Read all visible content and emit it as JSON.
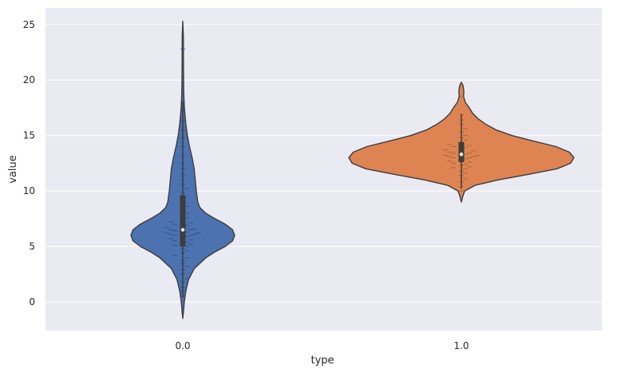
{
  "chart_data": {
    "type": "violin",
    "xlabel": "type",
    "ylabel": "value",
    "categories": [
      "0.0",
      "1.0"
    ],
    "yticks": [
      0,
      5,
      10,
      15,
      20,
      25
    ],
    "ylim": [
      -2.6,
      26.5
    ],
    "grid": true,
    "background": "#eaeaf2",
    "gridline_color": "#ffffff",
    "edge_color": "#3d3d3d",
    "violins": [
      {
        "category": "0.0",
        "color": "#4c72b0",
        "swarm_color": "#2b4a7c",
        "min": -1.5,
        "max": 25.3,
        "q1": 5.0,
        "median": 6.5,
        "q3": 9.6,
        "whisker_low": 0.4,
        "whisker_high": 18.0,
        "density": [
          [
            -1.5,
            0.0
          ],
          [
            -1.0,
            0.01
          ],
          [
            0.0,
            0.03
          ],
          [
            1.0,
            0.06
          ],
          [
            2.0,
            0.11
          ],
          [
            3.0,
            0.22
          ],
          [
            4.0,
            0.45
          ],
          [
            4.5,
            0.62
          ],
          [
            5.0,
            0.82
          ],
          [
            5.5,
            0.96
          ],
          [
            6.0,
            1.0
          ],
          [
            6.5,
            0.96
          ],
          [
            7.0,
            0.82
          ],
          [
            7.5,
            0.62
          ],
          [
            8.0,
            0.44
          ],
          [
            8.5,
            0.33
          ],
          [
            9.0,
            0.29
          ],
          [
            10.0,
            0.26
          ],
          [
            11.0,
            0.24
          ],
          [
            12.0,
            0.22
          ],
          [
            13.0,
            0.18
          ],
          [
            14.0,
            0.13
          ],
          [
            15.0,
            0.09
          ],
          [
            16.0,
            0.06
          ],
          [
            17.0,
            0.04
          ],
          [
            18.0,
            0.025
          ],
          [
            19.0,
            0.018
          ],
          [
            20.0,
            0.015
          ],
          [
            21.0,
            0.014
          ],
          [
            22.0,
            0.013
          ],
          [
            23.0,
            0.013
          ],
          [
            24.0,
            0.01
          ],
          [
            25.3,
            0.0
          ]
        ],
        "points": [
          0.5,
          1.0,
          1.3,
          1.8,
          2.1,
          2.5,
          2.9,
          3.2,
          3.5,
          3.8,
          4.0,
          4.2,
          4.4,
          4.6,
          4.8,
          5.0,
          5.1,
          5.2,
          5.3,
          5.4,
          5.5,
          5.6,
          5.7,
          5.8,
          5.9,
          6.0,
          6.0,
          6.1,
          6.1,
          6.2,
          6.2,
          6.3,
          6.3,
          6.4,
          6.5,
          6.5,
          6.6,
          6.7,
          6.8,
          6.9,
          7.0,
          7.1,
          7.2,
          7.4,
          7.6,
          7.8,
          8.0,
          8.3,
          8.6,
          9.0,
          9.4,
          9.8,
          10.2,
          10.6,
          11.0,
          11.5,
          12.0,
          12.5,
          13.2,
          14.0,
          14.8,
          15.5,
          16.3,
          17.2,
          18.0,
          22.8
        ]
      },
      {
        "category": "1.0",
        "color": "#dd8452",
        "swarm_color": "#9c5a34",
        "min": 9.0,
        "max": 19.8,
        "q1": 12.6,
        "median": 13.3,
        "q3": 14.4,
        "whisker_low": 10.2,
        "whisker_high": 16.9,
        "density": [
          [
            9.0,
            0.0
          ],
          [
            9.5,
            0.012
          ],
          [
            10.0,
            0.03
          ],
          [
            10.5,
            0.12
          ],
          [
            11.0,
            0.33
          ],
          [
            11.5,
            0.6
          ],
          [
            12.0,
            0.85
          ],
          [
            12.5,
            0.97
          ],
          [
            13.0,
            1.0
          ],
          [
            13.5,
            0.96
          ],
          [
            14.0,
            0.84
          ],
          [
            14.5,
            0.64
          ],
          [
            15.0,
            0.45
          ],
          [
            15.5,
            0.31
          ],
          [
            16.0,
            0.22
          ],
          [
            16.5,
            0.15
          ],
          [
            17.0,
            0.1
          ],
          [
            17.5,
            0.07
          ],
          [
            18.0,
            0.035
          ],
          [
            18.5,
            0.02
          ],
          [
            19.0,
            0.022
          ],
          [
            19.5,
            0.015
          ],
          [
            19.8,
            0.0
          ]
        ],
        "points": [
          10.0,
          10.4,
          10.8,
          11.1,
          11.4,
          11.6,
          11.8,
          12.0,
          12.1,
          12.2,
          12.3,
          12.4,
          12.5,
          12.6,
          12.7,
          12.8,
          12.9,
          13.0,
          13.0,
          13.1,
          13.1,
          13.2,
          13.2,
          13.3,
          13.3,
          13.4,
          13.4,
          13.5,
          13.6,
          13.7,
          13.8,
          13.9,
          14.0,
          14.1,
          14.2,
          14.4,
          14.6,
          14.8,
          15.0,
          15.3,
          15.6,
          16.0,
          16.4,
          16.9,
          18.5
        ]
      }
    ]
  }
}
